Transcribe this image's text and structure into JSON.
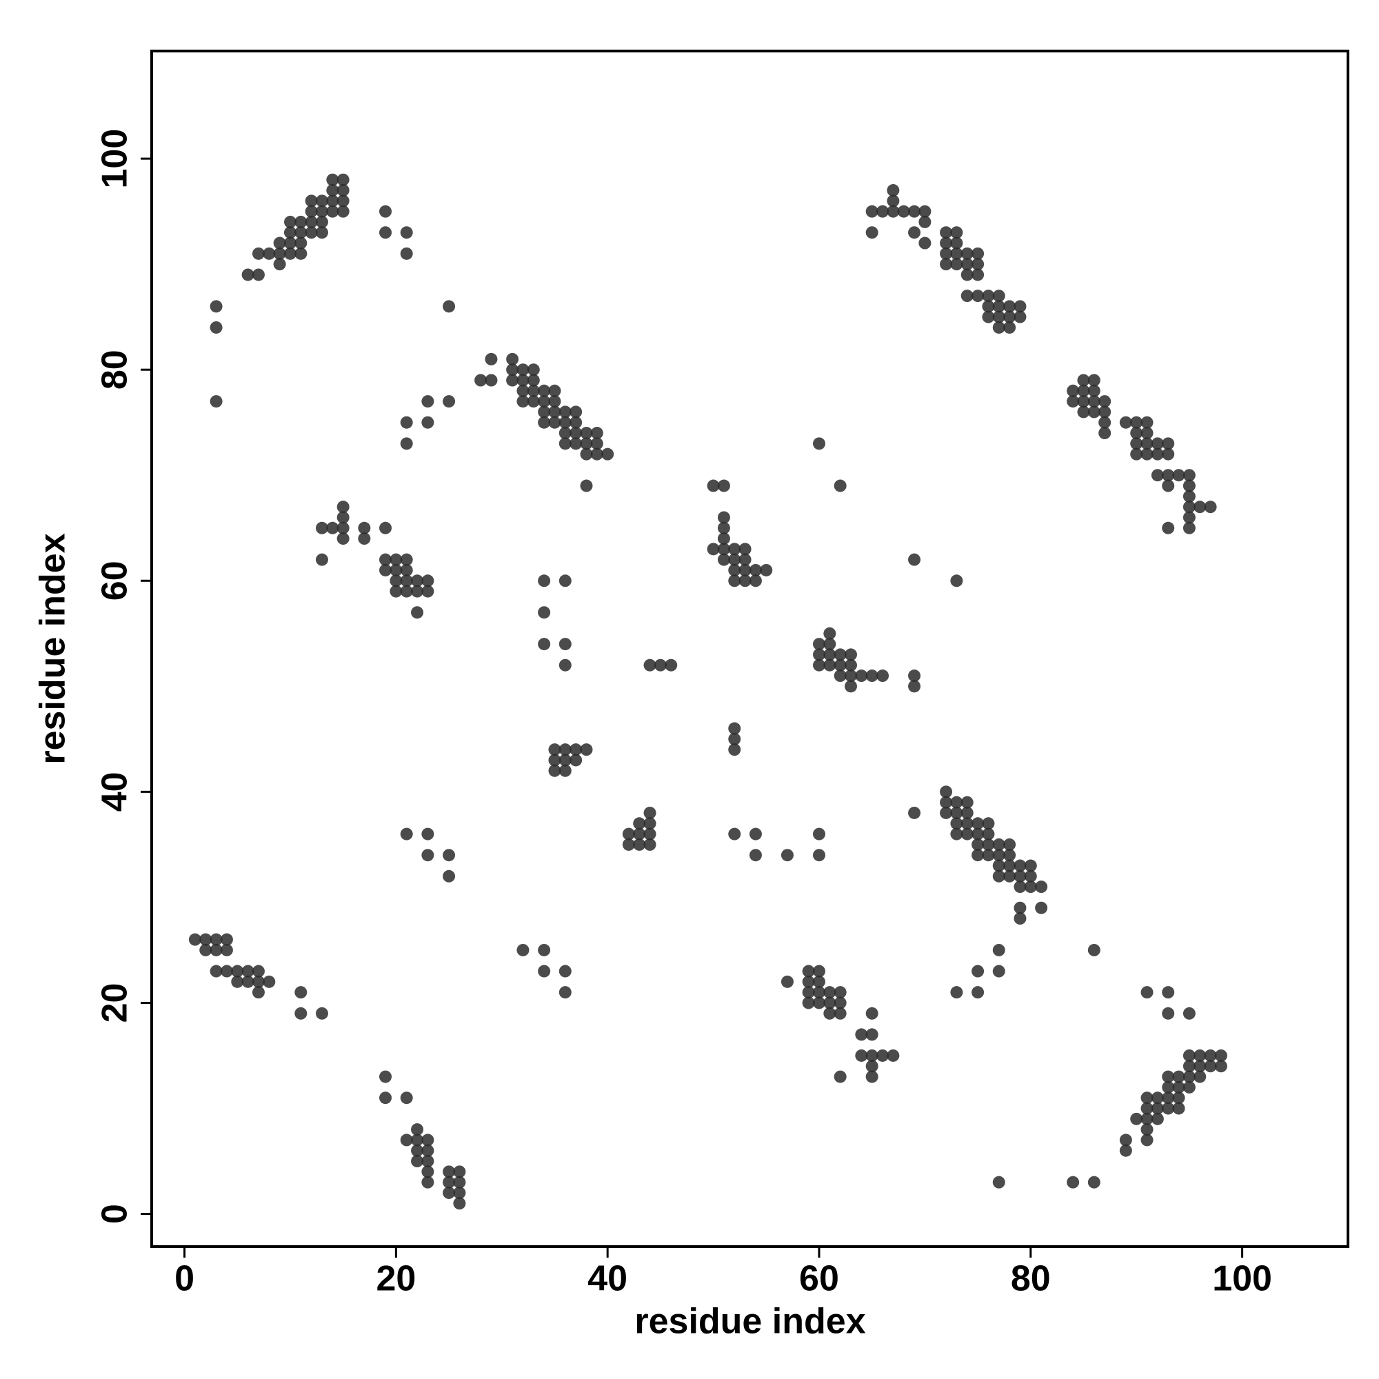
{
  "chart_data": {
    "type": "scatter",
    "xlabel": "residue index",
    "ylabel": "residue index",
    "color": "#2b2b2b",
    "xlim": [
      -3.1,
      110
    ],
    "ylim": [
      -3.1,
      110.2
    ],
    "xticks": [
      0,
      20,
      40,
      60,
      80,
      100
    ],
    "yticks": [
      0,
      20,
      40,
      60,
      80,
      100
    ],
    "grid": false,
    "x": [
      1,
      2,
      3,
      4,
      2,
      3,
      4,
      3,
      4,
      5,
      6,
      7,
      5,
      6,
      7,
      8,
      7,
      11,
      11,
      13,
      19,
      19,
      21,
      21,
      22,
      22,
      22,
      22,
      23,
      23,
      23,
      23,
      23,
      25,
      25,
      25,
      26,
      26,
      26,
      26,
      6,
      7,
      7,
      8,
      9,
      9,
      9,
      10,
      10,
      10,
      10,
      11,
      11,
      11,
      11,
      12,
      12,
      12,
      12,
      13,
      13,
      13,
      13,
      14,
      14,
      14,
      14,
      15,
      15,
      15,
      15,
      3,
      3,
      3,
      19,
      19,
      21,
      21,
      25,
      21,
      21,
      23,
      23,
      25,
      28,
      29,
      29,
      31,
      31,
      31,
      32,
      32,
      32,
      32,
      33,
      33,
      33,
      33,
      34,
      34,
      34,
      34,
      35,
      35,
      35,
      35,
      36,
      36,
      36,
      36,
      37,
      37,
      37,
      37,
      38,
      38,
      38,
      39,
      39,
      39,
      40,
      38,
      13,
      13,
      14,
      15,
      15,
      15,
      15,
      17,
      17,
      19,
      19,
      19,
      20,
      20,
      20,
      20,
      21,
      21,
      21,
      21,
      22,
      22,
      22,
      23,
      23,
      34,
      36,
      34,
      34,
      36,
      36,
      44,
      45,
      46,
      35,
      35,
      35,
      36,
      36,
      36,
      37,
      37,
      38,
      42,
      42,
      43,
      43,
      43,
      44,
      44,
      44,
      44,
      21,
      23,
      23,
      25,
      25,
      32,
      34,
      34,
      36,
      36,
      50,
      51,
      51,
      51,
      51,
      50,
      51,
      51,
      52,
      52,
      52,
      52,
      53,
      53,
      53,
      53,
      54,
      54,
      55,
      52,
      52,
      52,
      52,
      54,
      54,
      57,
      60,
      60,
      60,
      62,
      60,
      60,
      60,
      61,
      61,
      61,
      61,
      62,
      62,
      62,
      63,
      63,
      63,
      63,
      64,
      65,
      66,
      69,
      69,
      69,
      73,
      69,
      57,
      59,
      59,
      59,
      59,
      60,
      60,
      60,
      60,
      61,
      61,
      61,
      62,
      62,
      62,
      62,
      64,
      64,
      65,
      65,
      65,
      65,
      65,
      66,
      67,
      65,
      65,
      66,
      67,
      67,
      67,
      68,
      69,
      69,
      70,
      70,
      70,
      72,
      72,
      72,
      72,
      73,
      73,
      73,
      73,
      74,
      74,
      74,
      75,
      75,
      75,
      74,
      75,
      76,
      76,
      76,
      77,
      77,
      77,
      77,
      78,
      78,
      78,
      79,
      79,
      72,
      72,
      72,
      73,
      73,
      73,
      73,
      74,
      74,
      74,
      74,
      75,
      75,
      75,
      75,
      76,
      76,
      76,
      76,
      77,
      77,
      77,
      77,
      78,
      78,
      78,
      78,
      79,
      79,
      79,
      79,
      79,
      80,
      80,
      80,
      81,
      81,
      73,
      75,
      75,
      77,
      77,
      77,
      84,
      86,
      86,
      84,
      84,
      85,
      85,
      85,
      85,
      86,
      86,
      86,
      86,
      87,
      87,
      87,
      87,
      89,
      90,
      90,
      90,
      90,
      91,
      91,
      91,
      91,
      92,
      92,
      92,
      93,
      93,
      93,
      93,
      93,
      94,
      95,
      95,
      95,
      95,
      95,
      95,
      96,
      97,
      89,
      89,
      90,
      91,
      91,
      91,
      91,
      91,
      92,
      92,
      92,
      93,
      93,
      93,
      93,
      94,
      94,
      94,
      94,
      95,
      95,
      95,
      95,
      96,
      96,
      96,
      97,
      97,
      98,
      98,
      91,
      93,
      93,
      95
    ],
    "values": [
      26,
      26,
      26,
      26,
      25,
      25,
      25,
      23,
      23,
      23,
      23,
      23,
      22,
      22,
      22,
      22,
      21,
      21,
      19,
      19,
      13,
      11,
      11,
      7,
      8,
      7,
      6,
      5,
      7,
      6,
      5,
      4,
      3,
      4,
      3,
      2,
      4,
      3,
      2,
      1,
      89,
      89,
      91,
      91,
      90,
      91,
      92,
      91,
      92,
      93,
      94,
      91,
      92,
      93,
      94,
      93,
      94,
      95,
      96,
      93,
      94,
      95,
      96,
      95,
      96,
      97,
      98,
      95,
      96,
      97,
      98,
      86,
      84,
      77,
      95,
      93,
      93,
      91,
      86,
      75,
      73,
      77,
      75,
      77,
      79,
      79,
      81,
      81,
      80,
      79,
      80,
      79,
      78,
      77,
      80,
      79,
      78,
      77,
      78,
      77,
      76,
      75,
      78,
      77,
      76,
      75,
      76,
      75,
      74,
      73,
      76,
      75,
      74,
      73,
      74,
      73,
      72,
      74,
      73,
      72,
      72,
      69,
      65,
      62,
      65,
      67,
      66,
      65,
      64,
      65,
      64,
      65,
      62,
      61,
      62,
      61,
      60,
      59,
      62,
      61,
      60,
      59,
      60,
      59,
      57,
      60,
      59,
      60,
      60,
      57,
      54,
      54,
      52,
      52,
      52,
      52,
      44,
      43,
      42,
      44,
      43,
      42,
      44,
      43,
      44,
      36,
      35,
      37,
      36,
      35,
      38,
      37,
      36,
      35,
      36,
      36,
      34,
      34,
      32,
      25,
      25,
      23,
      23,
      21,
      69,
      69,
      66,
      65,
      64,
      63,
      63,
      62,
      63,
      62,
      61,
      60,
      63,
      62,
      61,
      60,
      61,
      60,
      61,
      46,
      45,
      44,
      36,
      36,
      34,
      34,
      36,
      34,
      73,
      69,
      54,
      53,
      52,
      55,
      54,
      53,
      52,
      53,
      52,
      51,
      53,
      52,
      51,
      50,
      51,
      51,
      51,
      51,
      50,
      62,
      60,
      38,
      22,
      23,
      22,
      21,
      20,
      23,
      22,
      21,
      20,
      21,
      20,
      19,
      21,
      20,
      19,
      13,
      17,
      15,
      19,
      17,
      15,
      14,
      13,
      15,
      15,
      95,
      93,
      95,
      97,
      96,
      95,
      95,
      95,
      93,
      95,
      94,
      92,
      93,
      92,
      91,
      90,
      93,
      92,
      91,
      90,
      91,
      90,
      89,
      91,
      90,
      89,
      87,
      87,
      87,
      86,
      85,
      87,
      86,
      85,
      84,
      86,
      85,
      84,
      86,
      85,
      40,
      39,
      38,
      39,
      38,
      37,
      36,
      39,
      38,
      37,
      36,
      37,
      36,
      35,
      34,
      37,
      36,
      35,
      34,
      35,
      34,
      33,
      32,
      35,
      34,
      33,
      32,
      33,
      32,
      31,
      29,
      28,
      33,
      32,
      31,
      31,
      29,
      21,
      23,
      21,
      25,
      23,
      3,
      3,
      3,
      25,
      78,
      77,
      79,
      78,
      77,
      76,
      79,
      78,
      77,
      76,
      77,
      76,
      75,
      74,
      75,
      75,
      74,
      73,
      72,
      75,
      74,
      73,
      72,
      73,
      72,
      70,
      73,
      72,
      70,
      69,
      65,
      70,
      70,
      69,
      68,
      67,
      66,
      65,
      67,
      67,
      7,
      6,
      9,
      11,
      10,
      9,
      8,
      7,
      11,
      10,
      9,
      13,
      12,
      11,
      10,
      13,
      12,
      11,
      10,
      15,
      14,
      13,
      12,
      15,
      14,
      13,
      15,
      14,
      15,
      14,
      21,
      21,
      19,
      19
    ]
  }
}
